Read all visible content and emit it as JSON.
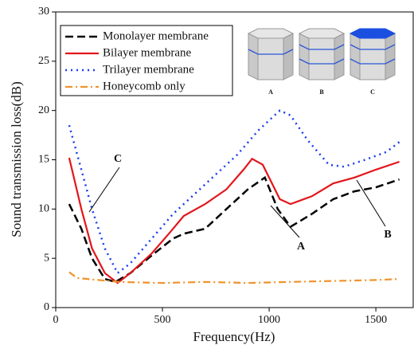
{
  "chart_data": {
    "type": "line",
    "xlabel": "Frequency(Hz)",
    "ylabel": "Sound transmission loss(dB)",
    "xlim": [
      0,
      1675
    ],
    "ylim": [
      0,
      30
    ],
    "xticks": [
      0,
      500,
      1000,
      1500
    ],
    "yticks": [
      0,
      5,
      10,
      15,
      20,
      25,
      30
    ],
    "legend": "upper left",
    "series": [
      {
        "name": "Monolayer membrane",
        "color": "#000000",
        "style": "dashed",
        "x": [
          63,
          120,
          170,
          230,
          280,
          350,
          450,
          550,
          600,
          700,
          800,
          900,
          980,
          1040,
          1100,
          1200,
          1300,
          1400,
          1500,
          1610
        ],
        "values": [
          10.5,
          8,
          5,
          2.9,
          2.6,
          3.5,
          5.3,
          7,
          7.5,
          8,
          10,
          12,
          13.2,
          10,
          8.2,
          9.5,
          11,
          11.8,
          12.2,
          13
        ]
      },
      {
        "name": "Bilayer membrane",
        "color": "#e3161b",
        "style": "solid",
        "x": [
          63,
          120,
          170,
          230,
          290,
          350,
          450,
          530,
          600,
          700,
          800,
          880,
          920,
          970,
          1050,
          1100,
          1200,
          1300,
          1400,
          1500,
          1610
        ],
        "values": [
          15.2,
          10,
          6,
          3.5,
          2.5,
          3.5,
          5.5,
          7.5,
          9.3,
          10.5,
          12,
          14,
          15.1,
          14.5,
          11,
          10.5,
          11.3,
          12.6,
          13.2,
          14,
          14.8
        ]
      },
      {
        "name": "Trilayer membrane",
        "color": "#1a3cf0",
        "style": "dotted",
        "x": [
          63,
          120,
          170,
          230,
          290,
          350,
          450,
          550,
          650,
          750,
          850,
          950,
          1050,
          1100,
          1180,
          1280,
          1350,
          1450,
          1550,
          1610
        ],
        "values": [
          18.5,
          14,
          10,
          6,
          3.5,
          4.5,
          7,
          9.5,
          11.5,
          13.5,
          15.5,
          18,
          20,
          19.5,
          17,
          14.5,
          14.3,
          15,
          15.8,
          16.8
        ]
      },
      {
        "name": "Honeycomb only",
        "color": "#f0932b",
        "style": "dashdot",
        "x": [
          63,
          100,
          200,
          300,
          500,
          700,
          900,
          1100,
          1300,
          1500,
          1610
        ],
        "values": [
          3.6,
          3,
          2.8,
          2.6,
          2.5,
          2.6,
          2.5,
          2.6,
          2.7,
          2.8,
          2.9
        ]
      }
    ],
    "annotations": [
      "A",
      "B",
      "C"
    ],
    "inset_labels": [
      "A",
      "B",
      "C"
    ]
  }
}
